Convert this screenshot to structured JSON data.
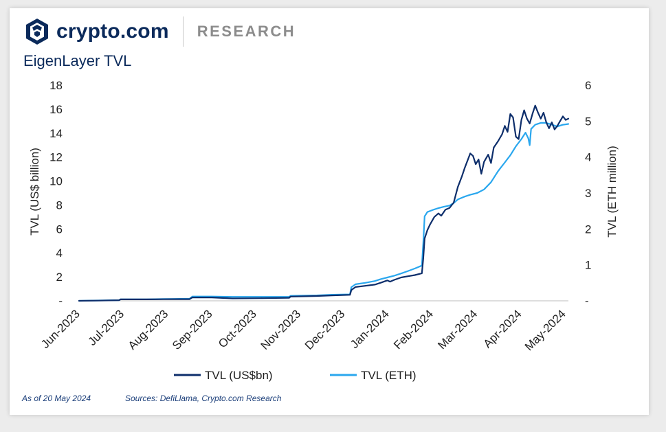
{
  "brand": {
    "name": "crypto.com",
    "section": "RESEARCH"
  },
  "colors": {
    "brand_navy": "#0b2a5b",
    "series_usd": "#0d2e6b",
    "series_eth": "#2aa7ee"
  },
  "footer": {
    "as_of": "As of 20 May 2024",
    "sources": "Sources: DefiLlama, Crypto.com Research"
  },
  "chart_data": {
    "type": "line",
    "title": "EigenLayer TVL",
    "x_domain": [
      "2023-06-01",
      "2024-05-20"
    ],
    "x_ticks": [
      "Jun-2023",
      "Jul-2023",
      "Aug-2023",
      "Sep-2023",
      "Oct-2023",
      "Nov-2023",
      "Dec-2023",
      "Jan-2024",
      "Feb-2024",
      "Mar-2024",
      "Apr-2024",
      "May-2024"
    ],
    "y_left": {
      "label": "TVL (US$ billion)",
      "ylim": [
        0,
        18
      ],
      "ticks": [
        "-",
        "2",
        "4",
        "6",
        "8",
        "10",
        "12",
        "14",
        "16",
        "18"
      ]
    },
    "y_right": {
      "label": "TVL (ETH million)",
      "ylim": [
        0,
        6
      ],
      "ticks": [
        "-",
        "1",
        "2",
        "3",
        "4",
        "5",
        "6"
      ]
    },
    "grid": false,
    "legend_placement": "bottom",
    "series": [
      {
        "name": "TVL (US$bn)",
        "axis": "left",
        "color": "#0d2e6b",
        "points": [
          [
            "2023-06-01",
            0.0
          ],
          [
            "2023-06-15",
            0.02
          ],
          [
            "2023-06-30",
            0.05
          ],
          [
            "2023-07-01",
            0.12
          ],
          [
            "2023-07-20",
            0.12
          ],
          [
            "2023-08-01",
            0.13
          ],
          [
            "2023-08-20",
            0.14
          ],
          [
            "2023-08-22",
            0.28
          ],
          [
            "2023-09-05",
            0.28
          ],
          [
            "2023-09-20",
            0.2
          ],
          [
            "2023-10-10",
            0.22
          ],
          [
            "2023-10-31",
            0.25
          ],
          [
            "2023-11-01",
            0.35
          ],
          [
            "2023-11-20",
            0.4
          ],
          [
            "2023-12-01",
            0.45
          ],
          [
            "2023-12-14",
            0.5
          ],
          [
            "2023-12-15",
            0.9
          ],
          [
            "2023-12-18",
            1.15
          ],
          [
            "2023-12-25",
            1.25
          ],
          [
            "2024-01-01",
            1.35
          ],
          [
            "2024-01-05",
            1.5
          ],
          [
            "2024-01-10",
            1.7
          ],
          [
            "2024-01-12",
            1.6
          ],
          [
            "2024-01-15",
            1.75
          ],
          [
            "2024-01-20",
            1.95
          ],
          [
            "2024-01-25",
            2.05
          ],
          [
            "2024-01-30",
            2.15
          ],
          [
            "2024-02-04",
            2.3
          ],
          [
            "2024-02-05",
            3.5
          ],
          [
            "2024-02-06",
            5.2
          ],
          [
            "2024-02-08",
            5.9
          ],
          [
            "2024-02-10",
            6.4
          ],
          [
            "2024-02-13",
            7.0
          ],
          [
            "2024-02-16",
            7.3
          ],
          [
            "2024-02-18",
            7.1
          ],
          [
            "2024-02-21",
            7.6
          ],
          [
            "2024-02-24",
            7.75
          ],
          [
            "2024-02-27",
            8.2
          ],
          [
            "2024-03-01",
            9.5
          ],
          [
            "2024-03-04",
            10.4
          ],
          [
            "2024-03-06",
            11.1
          ],
          [
            "2024-03-08",
            11.7
          ],
          [
            "2024-03-10",
            12.3
          ],
          [
            "2024-03-12",
            12.1
          ],
          [
            "2024-03-14",
            11.4
          ],
          [
            "2024-03-16",
            11.8
          ],
          [
            "2024-03-18",
            10.6
          ],
          [
            "2024-03-20",
            11.6
          ],
          [
            "2024-03-23",
            12.2
          ],
          [
            "2024-03-25",
            11.5
          ],
          [
            "2024-03-27",
            12.8
          ],
          [
            "2024-03-30",
            13.3
          ],
          [
            "2024-04-02",
            13.9
          ],
          [
            "2024-04-04",
            14.6
          ],
          [
            "2024-04-06",
            14.1
          ],
          [
            "2024-04-08",
            15.6
          ],
          [
            "2024-04-10",
            15.3
          ],
          [
            "2024-04-12",
            13.7
          ],
          [
            "2024-04-14",
            13.5
          ],
          [
            "2024-04-16",
            15.1
          ],
          [
            "2024-04-18",
            15.9
          ],
          [
            "2024-04-20",
            15.2
          ],
          [
            "2024-04-22",
            14.8
          ],
          [
            "2024-04-24",
            15.6
          ],
          [
            "2024-04-26",
            16.3
          ],
          [
            "2024-04-28",
            15.7
          ],
          [
            "2024-04-30",
            15.2
          ],
          [
            "2024-05-02",
            15.7
          ],
          [
            "2024-05-04",
            14.9
          ],
          [
            "2024-05-06",
            14.4
          ],
          [
            "2024-05-08",
            14.9
          ],
          [
            "2024-05-10",
            14.3
          ],
          [
            "2024-05-12",
            14.6
          ],
          [
            "2024-05-14",
            15.0
          ],
          [
            "2024-05-16",
            15.4
          ],
          [
            "2024-05-18",
            15.1
          ],
          [
            "2024-05-20",
            15.2
          ]
        ]
      },
      {
        "name": "TVL (ETH)",
        "axis": "right",
        "color": "#2aa7ee",
        "points": [
          [
            "2023-06-01",
            0.0
          ],
          [
            "2023-06-15",
            0.01
          ],
          [
            "2023-06-30",
            0.02
          ],
          [
            "2023-07-01",
            0.04
          ],
          [
            "2023-07-20",
            0.04
          ],
          [
            "2023-08-01",
            0.05
          ],
          [
            "2023-08-20",
            0.06
          ],
          [
            "2023-08-22",
            0.12
          ],
          [
            "2023-09-05",
            0.12
          ],
          [
            "2023-09-20",
            0.11
          ],
          [
            "2023-10-10",
            0.11
          ],
          [
            "2023-10-31",
            0.11
          ],
          [
            "2023-11-01",
            0.14
          ],
          [
            "2023-11-20",
            0.15
          ],
          [
            "2023-12-01",
            0.17
          ],
          [
            "2023-12-14",
            0.18
          ],
          [
            "2023-12-15",
            0.38
          ],
          [
            "2023-12-18",
            0.46
          ],
          [
            "2023-12-25",
            0.5
          ],
          [
            "2024-01-01",
            0.55
          ],
          [
            "2024-01-05",
            0.6
          ],
          [
            "2024-01-10",
            0.65
          ],
          [
            "2024-01-15",
            0.7
          ],
          [
            "2024-01-20",
            0.76
          ],
          [
            "2024-01-25",
            0.83
          ],
          [
            "2024-01-30",
            0.9
          ],
          [
            "2024-02-04",
            0.98
          ],
          [
            "2024-02-05",
            1.6
          ],
          [
            "2024-02-06",
            2.35
          ],
          [
            "2024-02-08",
            2.47
          ],
          [
            "2024-02-12",
            2.53
          ],
          [
            "2024-02-16",
            2.58
          ],
          [
            "2024-02-20",
            2.62
          ],
          [
            "2024-02-24",
            2.65
          ],
          [
            "2024-02-27",
            2.72
          ],
          [
            "2024-03-01",
            2.82
          ],
          [
            "2024-03-06",
            2.9
          ],
          [
            "2024-03-10",
            2.95
          ],
          [
            "2024-03-15",
            3.0
          ],
          [
            "2024-03-20",
            3.1
          ],
          [
            "2024-03-25",
            3.3
          ],
          [
            "2024-03-30",
            3.6
          ],
          [
            "2024-04-04",
            3.85
          ],
          [
            "2024-04-08",
            4.05
          ],
          [
            "2024-04-12",
            4.3
          ],
          [
            "2024-04-16",
            4.5
          ],
          [
            "2024-04-19",
            4.68
          ],
          [
            "2024-04-21",
            4.52
          ],
          [
            "2024-04-22",
            4.33
          ],
          [
            "2024-04-23",
            4.78
          ],
          [
            "2024-04-26",
            4.9
          ],
          [
            "2024-04-30",
            4.95
          ],
          [
            "2024-05-04",
            4.95
          ],
          [
            "2024-05-08",
            4.9
          ],
          [
            "2024-05-12",
            4.85
          ],
          [
            "2024-05-16",
            4.9
          ],
          [
            "2024-05-20",
            4.92
          ]
        ]
      }
    ]
  }
}
